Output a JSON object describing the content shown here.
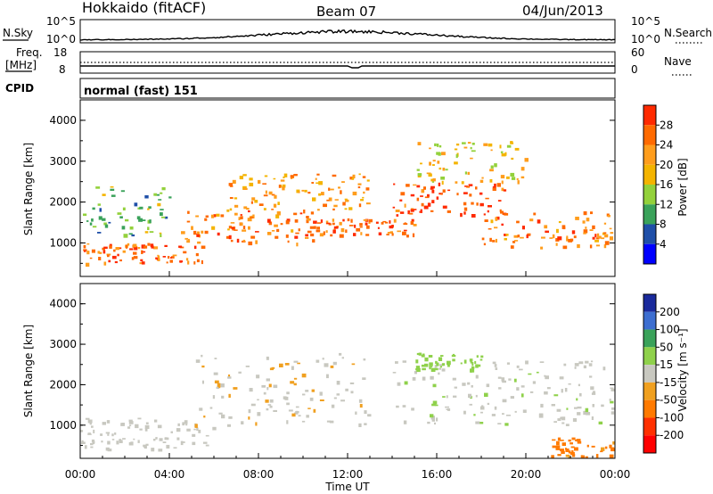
{
  "header": {
    "station": "Hokkaido (fitACF)",
    "beam": "Beam 07",
    "date": "04/Jun/2013"
  },
  "top_panel": {
    "nsky_label": "N.Sky",
    "nsearch_label": "N.Search",
    "left_ticks": [
      "10^5",
      "10^0"
    ],
    "right_ticks": [
      "10^5",
      "10^0"
    ],
    "freq_label": "Freq.",
    "freq_unit": "[MHz]",
    "freq_ticks": [
      "18",
      "8"
    ],
    "nave_label": "Nave",
    "nave_ticks": [
      "60",
      "0"
    ],
    "cpid_label": "CPID",
    "cpid_value": "normal (fast) 151"
  },
  "power_panel": {
    "ylabel": "Slant Range [km]",
    "yticks": [
      "4000",
      "3000",
      "2000",
      "1000"
    ],
    "colorbar_label": "Power [dB]",
    "colorbar_ticks": [
      "28",
      "24",
      "20",
      "16",
      "12",
      "8",
      "4"
    ],
    "colorbar_colors": [
      "#ff2a00",
      "#ff6a00",
      "#ff9d1c",
      "#f4b400",
      "#93d13b",
      "#3aa25a",
      "#1f4fa8",
      "#0000ff"
    ]
  },
  "velocity_panel": {
    "ylabel": "Slant Range [km]",
    "yticks": [
      "4000",
      "3000",
      "2000",
      "1000"
    ],
    "colorbar_label": "Velocity [m s⁻¹]",
    "colorbar_ticks": [
      "200",
      "100",
      "50",
      "15",
      "-15",
      "-50",
      "-100",
      "-200"
    ],
    "colorbar_colors": [
      "#1a2a9c",
      "#3d6ed0",
      "#3aa25a",
      "#8fd14b",
      "#c8c8c0",
      "#f0a020",
      "#ff7a00",
      "#ff3000",
      "#ff0000"
    ]
  },
  "xaxis": {
    "label": "Time UT",
    "ticks": [
      "00:00",
      "04:00",
      "08:00",
      "12:00",
      "16:00",
      "20:00",
      "00:00"
    ]
  },
  "chart_data": {
    "type": "heatmap",
    "x_range": [
      "00:00",
      "24:00"
    ],
    "y_range_km": [
      180,
      4500
    ],
    "power_bands": [
      {
        "t_start": 0,
        "t_end": 5.5,
        "range_km": [
          500,
          1000
        ],
        "power_db": 26
      },
      {
        "t_start": 4.5,
        "t_end": 10.5,
        "range_km": [
          1000,
          1800
        ],
        "power_db": 24
      },
      {
        "t_start": 6.5,
        "t_end": 13,
        "range_km": [
          1800,
          2700
        ],
        "power_db": 22
      },
      {
        "t_start": 10,
        "t_end": 15,
        "range_km": [
          1200,
          1600
        ],
        "power_db": 26
      },
      {
        "t_start": 14,
        "t_end": 19,
        "range_km": [
          1700,
          2500
        ],
        "power_db": 28
      },
      {
        "t_start": 18,
        "t_end": 24,
        "range_km": [
          900,
          1800
        ],
        "power_db": 24
      },
      {
        "t_start": 15,
        "t_end": 20,
        "range_km": [
          2500,
          3500
        ],
        "power_db": 18
      },
      {
        "t_start": 0,
        "t_end": 4,
        "range_km": [
          1200,
          2400
        ],
        "power_db": 12
      }
    ],
    "velocity_bands": [
      {
        "t_start": 0,
        "t_end": 6,
        "range_km": [
          400,
          1200
        ],
        "velocity": 0
      },
      {
        "t_start": 5,
        "t_end": 13,
        "range_km": [
          1000,
          2800
        ],
        "velocity": -10
      },
      {
        "t_start": 14,
        "t_end": 24,
        "range_km": [
          1000,
          2600
        ],
        "velocity": 5
      },
      {
        "t_start": 15,
        "t_end": 18,
        "range_km": [
          2400,
          2800
        ],
        "velocity": 30
      },
      {
        "t_start": 21,
        "t_end": 24,
        "range_km": [
          200,
          700
        ],
        "velocity": -60
      }
    ]
  }
}
